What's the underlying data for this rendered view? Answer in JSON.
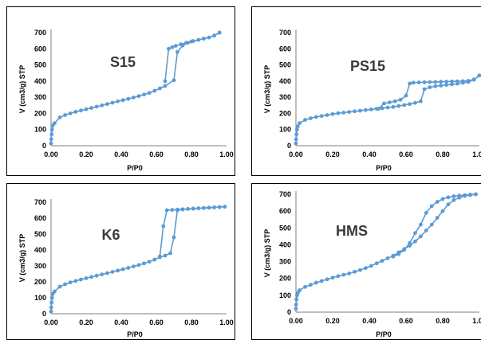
{
  "chart_data": [
    {
      "type": "line",
      "title": "S15",
      "xlabel": "P/P0",
      "ylabel": "V (cm3/g) STP",
      "xlim": [
        0,
        1
      ],
      "ylim": [
        0,
        700
      ],
      "xticks": [
        "0.00",
        "0.20",
        "0.40",
        "0.60",
        "0.80",
        "1.00"
      ],
      "yticks": [
        "0",
        "100",
        "200",
        "300",
        "400",
        "500",
        "600",
        "700"
      ],
      "color": "#5b9bd5",
      "series": [
        {
          "x": [
            0.0,
            0.001,
            0.003,
            0.006,
            0.01,
            0.02,
            0.05,
            0.08,
            0.11,
            0.14,
            0.17,
            0.2,
            0.23,
            0.26,
            0.29,
            0.32,
            0.35,
            0.38,
            0.41,
            0.44,
            0.47,
            0.5,
            0.53,
            0.56,
            0.59,
            0.62,
            0.65,
            0.7,
            0.72,
            0.75,
            0.78,
            0.81,
            0.84,
            0.87,
            0.9,
            0.93,
            0.96
          ],
          "y": [
            15,
            40,
            70,
            100,
            125,
            140,
            175,
            190,
            200,
            210,
            218,
            226,
            234,
            242,
            250,
            258,
            266,
            275,
            282,
            290,
            298,
            307,
            317,
            327,
            340,
            355,
            370,
            405,
            580,
            620,
            638,
            648,
            655,
            663,
            670,
            682,
            700
          ]
        },
        {
          "x": [
            0.96,
            0.93,
            0.9,
            0.87,
            0.84,
            0.8,
            0.77,
            0.74,
            0.71,
            0.69,
            0.67,
            0.65
          ],
          "y": [
            700,
            682,
            670,
            663,
            655,
            645,
            637,
            628,
            618,
            610,
            600,
            400
          ]
        }
      ]
    },
    {
      "type": "line",
      "title": "PS15",
      "xlabel": "P/P0",
      "ylabel": "V (cm3/g) STP",
      "xlim": [
        0,
        1
      ],
      "ylim": [
        0,
        700
      ],
      "xticks": [
        "0.00",
        "0.20",
        "0.40",
        "0.60",
        "0.80",
        "1.00"
      ],
      "yticks": [
        "0",
        "100",
        "200",
        "300",
        "400",
        "500",
        "600",
        "700"
      ],
      "color": "#5b9bd5",
      "series": [
        {
          "x": [
            0.0,
            0.001,
            0.003,
            0.006,
            0.01,
            0.02,
            0.05,
            0.08,
            0.11,
            0.14,
            0.17,
            0.2,
            0.23,
            0.26,
            0.29,
            0.32,
            0.35,
            0.38,
            0.41,
            0.44,
            0.47,
            0.5,
            0.53,
            0.56,
            0.59,
            0.62,
            0.65,
            0.68,
            0.7,
            0.73,
            0.76,
            0.79,
            0.82,
            0.85,
            0.88,
            0.91,
            0.94,
            0.97,
            1.0
          ],
          "y": [
            15,
            40,
            70,
            100,
            120,
            140,
            160,
            170,
            178,
            184,
            190,
            196,
            201,
            205,
            209,
            213,
            217,
            221,
            225,
            229,
            232,
            236,
            240,
            246,
            252,
            258,
            265,
            275,
            350,
            362,
            368,
            372,
            376,
            380,
            384,
            390,
            395,
            408,
            435
          ]
        },
        {
          "x": [
            1.0,
            0.97,
            0.94,
            0.91,
            0.88,
            0.85,
            0.82,
            0.79,
            0.76,
            0.73,
            0.7,
            0.67,
            0.64,
            0.62,
            0.6,
            0.57,
            0.54,
            0.51,
            0.48,
            0.45
          ],
          "y": [
            435,
            410,
            402,
            400,
            399,
            398,
            397,
            396,
            395,
            394,
            393,
            392,
            390,
            385,
            310,
            285,
            275,
            268,
            262,
            228
          ]
        }
      ]
    },
    {
      "type": "line",
      "title": "K6",
      "xlabel": "P/P0",
      "ylabel": "V (cm3/g) STP",
      "xlim": [
        0,
        1
      ],
      "ylim": [
        0,
        700
      ],
      "xticks": [
        "0.00",
        "0.20",
        "0.40",
        "0.60",
        "0.80",
        "1.00"
      ],
      "yticks": [
        "0",
        "100",
        "200",
        "300",
        "400",
        "500",
        "600",
        "700"
      ],
      "color": "#5b9bd5",
      "series": [
        {
          "x": [
            0.0,
            0.001,
            0.003,
            0.006,
            0.01,
            0.02,
            0.05,
            0.08,
            0.11,
            0.14,
            0.17,
            0.2,
            0.23,
            0.26,
            0.29,
            0.32,
            0.35,
            0.38,
            0.41,
            0.44,
            0.47,
            0.5,
            0.53,
            0.56,
            0.59,
            0.62,
            0.65,
            0.68,
            0.7,
            0.72,
            0.75,
            0.78,
            0.81,
            0.84,
            0.87,
            0.9,
            0.93,
            0.96,
            0.99
          ],
          "y": [
            15,
            40,
            70,
            100,
            125,
            140,
            170,
            185,
            197,
            206,
            215,
            223,
            231,
            239,
            247,
            255,
            263,
            271,
            279,
            288,
            297,
            306,
            316,
            327,
            340,
            355,
            365,
            380,
            480,
            650,
            655,
            658,
            660,
            662,
            664,
            666,
            668,
            670,
            672
          ]
        },
        {
          "x": [
            0.99,
            0.96,
            0.93,
            0.9,
            0.87,
            0.84,
            0.81,
            0.78,
            0.75,
            0.72,
            0.69,
            0.66,
            0.64,
            0.62
          ],
          "y": [
            672,
            670,
            668,
            666,
            664,
            662,
            660,
            658,
            656,
            654,
            652,
            650,
            550,
            360
          ]
        }
      ]
    },
    {
      "type": "line",
      "title": "HMS",
      "xlabel": "P/P0",
      "ylabel": "V (cm3/g) STP",
      "xlim": [
        0,
        1
      ],
      "ylim": [
        0,
        700
      ],
      "xticks": [
        "0.00",
        "0.20",
        "0.40",
        "0.60",
        "0.80",
        "1.00"
      ],
      "yticks": [
        "0",
        "100",
        "200",
        "300",
        "400",
        "500",
        "600",
        "700"
      ],
      "color": "#5b9bd5",
      "series": [
        {
          "x": [
            0.0,
            0.001,
            0.003,
            0.006,
            0.01,
            0.02,
            0.05,
            0.08,
            0.11,
            0.14,
            0.17,
            0.2,
            0.23,
            0.26,
            0.29,
            0.32,
            0.35,
            0.38,
            0.41,
            0.44,
            0.47,
            0.5,
            0.53,
            0.56,
            0.59,
            0.62,
            0.65,
            0.68,
            0.71,
            0.74,
            0.77,
            0.8,
            0.83,
            0.86,
            0.89,
            0.92,
            0.95,
            0.98
          ],
          "y": [
            20,
            45,
            75,
            100,
            115,
            130,
            150,
            162,
            175,
            185,
            195,
            205,
            214,
            222,
            230,
            240,
            250,
            262,
            275,
            290,
            305,
            320,
            335,
            355,
            375,
            395,
            420,
            450,
            485,
            520,
            560,
            600,
            640,
            665,
            680,
            690,
            695,
            700
          ]
        },
        {
          "x": [
            0.98,
            0.95,
            0.92,
            0.89,
            0.86,
            0.83,
            0.8,
            0.77,
            0.74,
            0.71,
            0.68,
            0.65,
            0.62,
            0.59,
            0.56,
            0.53
          ],
          "y": [
            700,
            698,
            695,
            692,
            688,
            682,
            672,
            655,
            630,
            590,
            520,
            470,
            410,
            370,
            345,
            330
          ]
        }
      ]
    }
  ]
}
